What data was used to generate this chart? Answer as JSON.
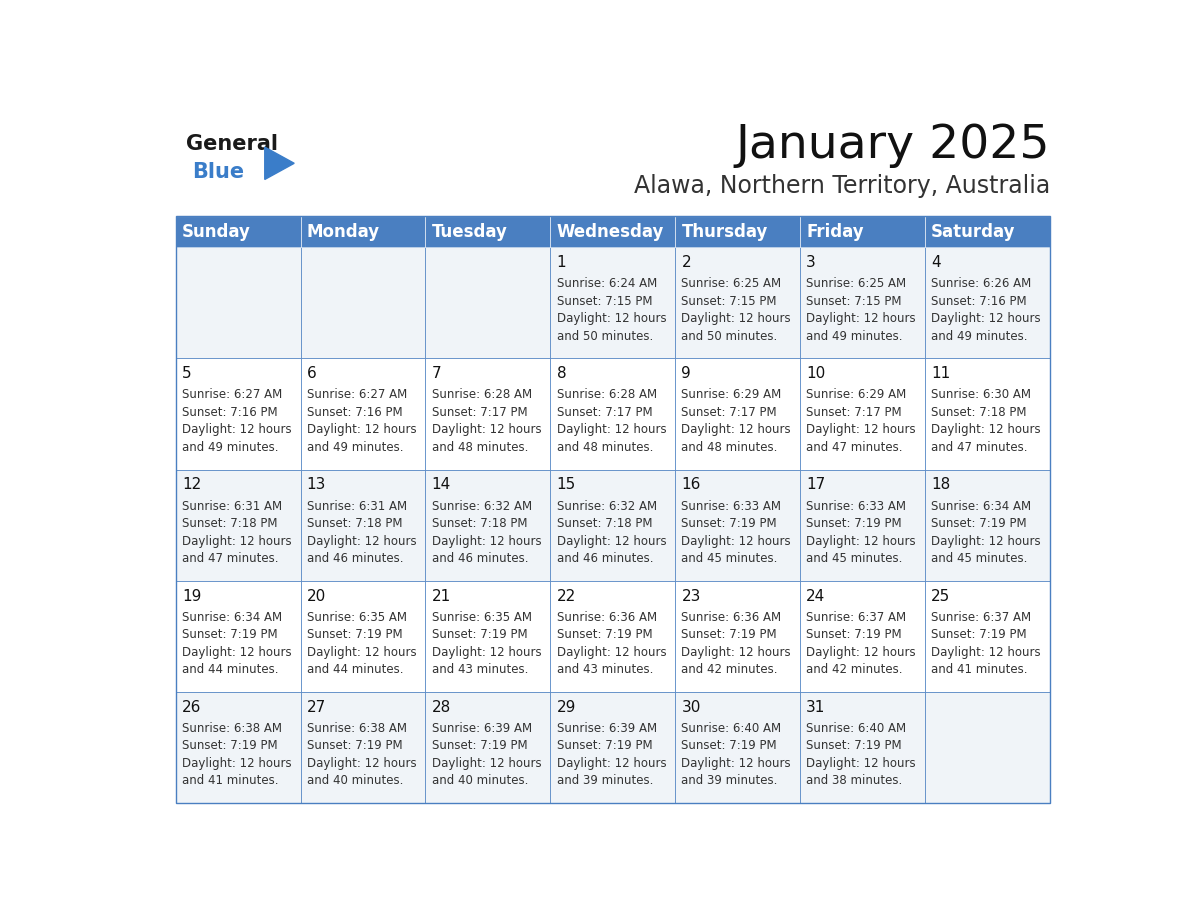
{
  "title": "January 2025",
  "subtitle": "Alawa, Northern Territory, Australia",
  "header_color": "#4a7fc1",
  "header_text_color": "#ffffff",
  "cell_bg_even": "#f0f4f8",
  "cell_bg_odd": "#ffffff",
  "border_color": "#4a7fc1",
  "border_color_inner": "#aaaaaa",
  "day_names": [
    "Sunday",
    "Monday",
    "Tuesday",
    "Wednesday",
    "Thursday",
    "Friday",
    "Saturday"
  ],
  "title_fontsize": 34,
  "subtitle_fontsize": 17,
  "header_fontsize": 12,
  "day_num_fontsize": 11,
  "cell_fontsize": 8.5,
  "days": [
    {
      "day": 1,
      "col": 3,
      "row": 0,
      "sunrise": "6:24 AM",
      "sunset": "7:15 PM",
      "dl1": "12 hours",
      "dl2": "and 50 minutes."
    },
    {
      "day": 2,
      "col": 4,
      "row": 0,
      "sunrise": "6:25 AM",
      "sunset": "7:15 PM",
      "dl1": "12 hours",
      "dl2": "and 50 minutes."
    },
    {
      "day": 3,
      "col": 5,
      "row": 0,
      "sunrise": "6:25 AM",
      "sunset": "7:15 PM",
      "dl1": "12 hours",
      "dl2": "and 49 minutes."
    },
    {
      "day": 4,
      "col": 6,
      "row": 0,
      "sunrise": "6:26 AM",
      "sunset": "7:16 PM",
      "dl1": "12 hours",
      "dl2": "and 49 minutes."
    },
    {
      "day": 5,
      "col": 0,
      "row": 1,
      "sunrise": "6:27 AM",
      "sunset": "7:16 PM",
      "dl1": "12 hours",
      "dl2": "and 49 minutes."
    },
    {
      "day": 6,
      "col": 1,
      "row": 1,
      "sunrise": "6:27 AM",
      "sunset": "7:16 PM",
      "dl1": "12 hours",
      "dl2": "and 49 minutes."
    },
    {
      "day": 7,
      "col": 2,
      "row": 1,
      "sunrise": "6:28 AM",
      "sunset": "7:17 PM",
      "dl1": "12 hours",
      "dl2": "and 48 minutes."
    },
    {
      "day": 8,
      "col": 3,
      "row": 1,
      "sunrise": "6:28 AM",
      "sunset": "7:17 PM",
      "dl1": "12 hours",
      "dl2": "and 48 minutes."
    },
    {
      "day": 9,
      "col": 4,
      "row": 1,
      "sunrise": "6:29 AM",
      "sunset": "7:17 PM",
      "dl1": "12 hours",
      "dl2": "and 48 minutes."
    },
    {
      "day": 10,
      "col": 5,
      "row": 1,
      "sunrise": "6:29 AM",
      "sunset": "7:17 PM",
      "dl1": "12 hours",
      "dl2": "and 47 minutes."
    },
    {
      "day": 11,
      "col": 6,
      "row": 1,
      "sunrise": "6:30 AM",
      "sunset": "7:18 PM",
      "dl1": "12 hours",
      "dl2": "and 47 minutes."
    },
    {
      "day": 12,
      "col": 0,
      "row": 2,
      "sunrise": "6:31 AM",
      "sunset": "7:18 PM",
      "dl1": "12 hours",
      "dl2": "and 47 minutes."
    },
    {
      "day": 13,
      "col": 1,
      "row": 2,
      "sunrise": "6:31 AM",
      "sunset": "7:18 PM",
      "dl1": "12 hours",
      "dl2": "and 46 minutes."
    },
    {
      "day": 14,
      "col": 2,
      "row": 2,
      "sunrise": "6:32 AM",
      "sunset": "7:18 PM",
      "dl1": "12 hours",
      "dl2": "and 46 minutes."
    },
    {
      "day": 15,
      "col": 3,
      "row": 2,
      "sunrise": "6:32 AM",
      "sunset": "7:18 PM",
      "dl1": "12 hours",
      "dl2": "and 46 minutes."
    },
    {
      "day": 16,
      "col": 4,
      "row": 2,
      "sunrise": "6:33 AM",
      "sunset": "7:19 PM",
      "dl1": "12 hours",
      "dl2": "and 45 minutes."
    },
    {
      "day": 17,
      "col": 5,
      "row": 2,
      "sunrise": "6:33 AM",
      "sunset": "7:19 PM",
      "dl1": "12 hours",
      "dl2": "and 45 minutes."
    },
    {
      "day": 18,
      "col": 6,
      "row": 2,
      "sunrise": "6:34 AM",
      "sunset": "7:19 PM",
      "dl1": "12 hours",
      "dl2": "and 45 minutes."
    },
    {
      "day": 19,
      "col": 0,
      "row": 3,
      "sunrise": "6:34 AM",
      "sunset": "7:19 PM",
      "dl1": "12 hours",
      "dl2": "and 44 minutes."
    },
    {
      "day": 20,
      "col": 1,
      "row": 3,
      "sunrise": "6:35 AM",
      "sunset": "7:19 PM",
      "dl1": "12 hours",
      "dl2": "and 44 minutes."
    },
    {
      "day": 21,
      "col": 2,
      "row": 3,
      "sunrise": "6:35 AM",
      "sunset": "7:19 PM",
      "dl1": "12 hours",
      "dl2": "and 43 minutes."
    },
    {
      "day": 22,
      "col": 3,
      "row": 3,
      "sunrise": "6:36 AM",
      "sunset": "7:19 PM",
      "dl1": "12 hours",
      "dl2": "and 43 minutes."
    },
    {
      "day": 23,
      "col": 4,
      "row": 3,
      "sunrise": "6:36 AM",
      "sunset": "7:19 PM",
      "dl1": "12 hours",
      "dl2": "and 42 minutes."
    },
    {
      "day": 24,
      "col": 5,
      "row": 3,
      "sunrise": "6:37 AM",
      "sunset": "7:19 PM",
      "dl1": "12 hours",
      "dl2": "and 42 minutes."
    },
    {
      "day": 25,
      "col": 6,
      "row": 3,
      "sunrise": "6:37 AM",
      "sunset": "7:19 PM",
      "dl1": "12 hours",
      "dl2": "and 41 minutes."
    },
    {
      "day": 26,
      "col": 0,
      "row": 4,
      "sunrise": "6:38 AM",
      "sunset": "7:19 PM",
      "dl1": "12 hours",
      "dl2": "and 41 minutes."
    },
    {
      "day": 27,
      "col": 1,
      "row": 4,
      "sunrise": "6:38 AM",
      "sunset": "7:19 PM",
      "dl1": "12 hours",
      "dl2": "and 40 minutes."
    },
    {
      "day": 28,
      "col": 2,
      "row": 4,
      "sunrise": "6:39 AM",
      "sunset": "7:19 PM",
      "dl1": "12 hours",
      "dl2": "and 40 minutes."
    },
    {
      "day": 29,
      "col": 3,
      "row": 4,
      "sunrise": "6:39 AM",
      "sunset": "7:19 PM",
      "dl1": "12 hours",
      "dl2": "and 39 minutes."
    },
    {
      "day": 30,
      "col": 4,
      "row": 4,
      "sunrise": "6:40 AM",
      "sunset": "7:19 PM",
      "dl1": "12 hours",
      "dl2": "and 39 minutes."
    },
    {
      "day": 31,
      "col": 5,
      "row": 4,
      "sunrise": "6:40 AM",
      "sunset": "7:19 PM",
      "dl1": "12 hours",
      "dl2": "and 38 minutes."
    }
  ]
}
